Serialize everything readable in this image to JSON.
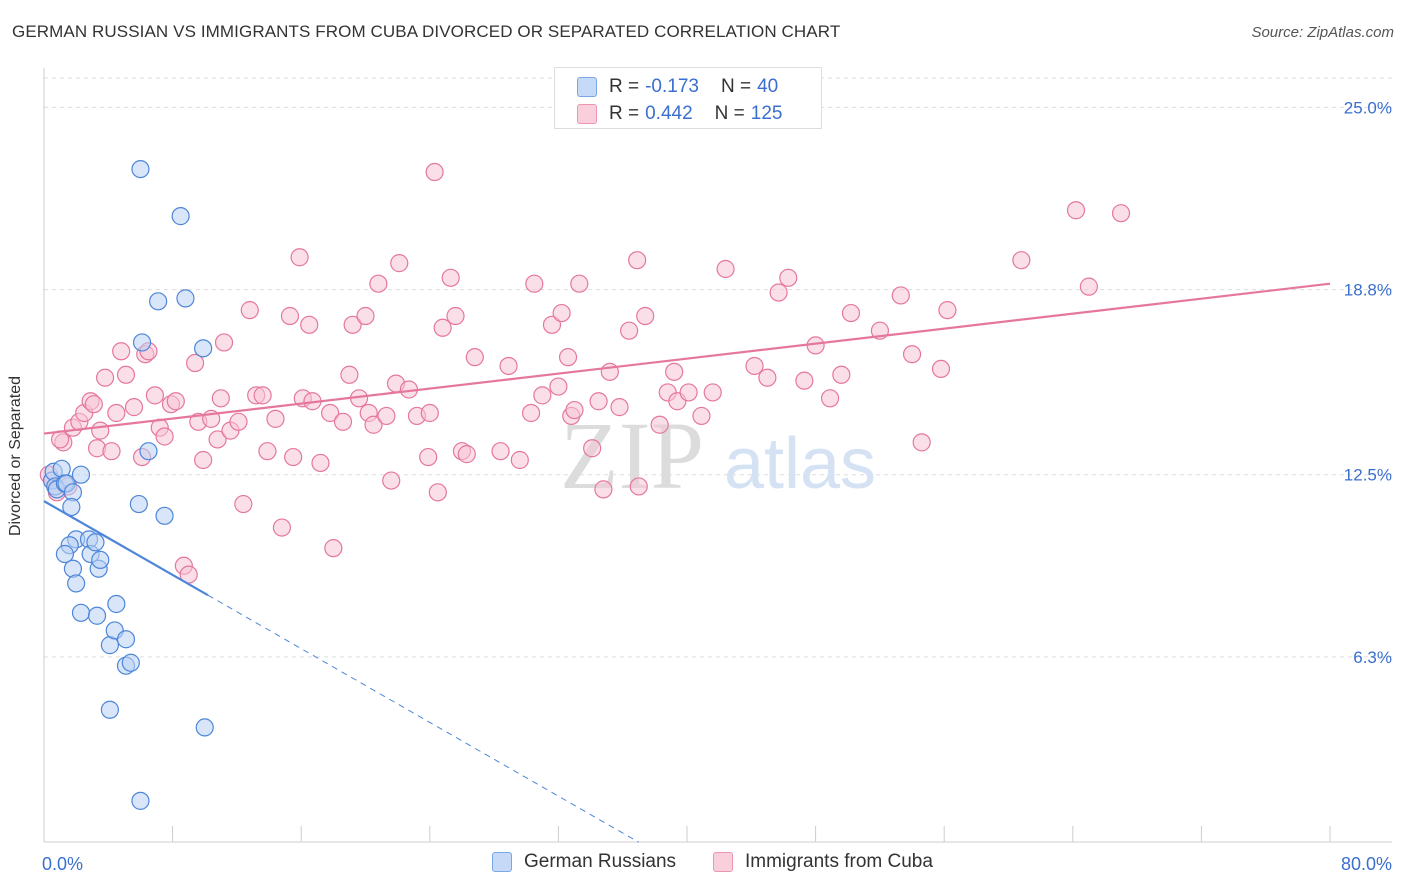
{
  "title": "GERMAN RUSSIAN VS IMMIGRANTS FROM CUBA DIVORCED OR SEPARATED CORRELATION CHART",
  "source": "Source: ZipAtlas.com",
  "watermark": {
    "zip": "ZIP",
    "atlas": "atlas"
  },
  "legend": {
    "r_label": "R =",
    "n_label": "N =",
    "rows": [
      {
        "r": "-0.173",
        "n": "40"
      },
      {
        "r": "0.442",
        "n": "125"
      }
    ]
  },
  "chart_data": {
    "type": "scatter",
    "title": "GERMAN RUSSIAN VS IMMIGRANTS FROM CUBA DIVORCED OR SEPARATED CORRELATION CHART",
    "xlabel": "",
    "ylabel": "Divorced or Separated",
    "x_range": [
      0,
      80
    ],
    "y_range": [
      0,
      26
    ],
    "x_ticks": [
      0,
      8,
      16,
      24,
      32,
      40,
      48,
      56,
      64,
      72,
      80
    ],
    "x_tick_labels": [
      {
        "value": 0,
        "label": "0.0%"
      },
      {
        "value": 80,
        "label": "80.0%"
      }
    ],
    "y_ticks": [
      {
        "value": 6.3,
        "label": "6.3%"
      },
      {
        "value": 12.5,
        "label": "12.5%"
      },
      {
        "value": 18.8,
        "label": "18.8%"
      },
      {
        "value": 25.0,
        "label": "25.0%"
      }
    ],
    "grid": true,
    "colors": {
      "blue": "#4d86d9",
      "blue_fill": "#b9d1f4",
      "pink": "#e5779e",
      "pink_fill": "#f7c5d5",
      "tick_label": "#3a6fd0",
      "grid": "#dddddd"
    },
    "series": [
      {
        "name": "German Russians",
        "r": -0.173,
        "n": 40,
        "trend": {
          "x0": 0,
          "y0": 11.6,
          "x1": 10.2,
          "y1": 8.4,
          "dash_to_x": 37
        },
        "points": [
          [
            0.5,
            12.3
          ],
          [
            0.6,
            12.6
          ],
          [
            0.7,
            12.1
          ],
          [
            0.8,
            12.0
          ],
          [
            1.1,
            12.7
          ],
          [
            1.3,
            12.2
          ],
          [
            1.4,
            12.2
          ],
          [
            1.8,
            11.9
          ],
          [
            1.7,
            11.4
          ],
          [
            2.0,
            10.3
          ],
          [
            1.6,
            10.1
          ],
          [
            1.3,
            9.8
          ],
          [
            1.8,
            9.3
          ],
          [
            2.3,
            12.5
          ],
          [
            2.0,
            8.8
          ],
          [
            2.3,
            7.8
          ],
          [
            2.8,
            10.3
          ],
          [
            2.9,
            9.8
          ],
          [
            3.2,
            10.2
          ],
          [
            3.4,
            9.3
          ],
          [
            3.3,
            7.7
          ],
          [
            3.5,
            9.6
          ],
          [
            4.1,
            6.7
          ],
          [
            4.4,
            7.2
          ],
          [
            4.5,
            8.1
          ],
          [
            5.1,
            6.9
          ],
          [
            5.1,
            6.0
          ],
          [
            5.4,
            6.1
          ],
          [
            4.1,
            4.5
          ],
          [
            6.0,
            1.4
          ],
          [
            5.9,
            11.5
          ],
          [
            6.5,
            13.3
          ],
          [
            7.5,
            11.1
          ],
          [
            6.1,
            17.0
          ],
          [
            7.1,
            18.4
          ],
          [
            8.8,
            18.5
          ],
          [
            9.9,
            16.8
          ],
          [
            10.0,
            3.9
          ],
          [
            6.0,
            22.9
          ],
          [
            8.5,
            21.3
          ]
        ]
      },
      {
        "name": "Immigrants from Cuba",
        "r": 0.442,
        "n": 125,
        "trend": {
          "x0": 0,
          "y0": 13.9,
          "x1": 80,
          "y1": 19.0
        },
        "points": [
          [
            0.3,
            12.5
          ],
          [
            0.5,
            12.3
          ],
          [
            0.8,
            11.9
          ],
          [
            1.2,
            13.6
          ],
          [
            1.5,
            12.1
          ],
          [
            1.0,
            13.7
          ],
          [
            1.8,
            14.1
          ],
          [
            2.2,
            14.3
          ],
          [
            2.5,
            14.6
          ],
          [
            2.9,
            15.0
          ],
          [
            3.1,
            14.9
          ],
          [
            3.3,
            13.4
          ],
          [
            3.5,
            14.0
          ],
          [
            3.8,
            15.8
          ],
          [
            4.2,
            13.3
          ],
          [
            4.5,
            14.6
          ],
          [
            4.8,
            16.7
          ],
          [
            5.1,
            15.9
          ],
          [
            5.6,
            14.8
          ],
          [
            6.1,
            13.1
          ],
          [
            6.3,
            16.6
          ],
          [
            6.5,
            16.7
          ],
          [
            6.9,
            15.2
          ],
          [
            7.2,
            14.1
          ],
          [
            7.5,
            13.8
          ],
          [
            7.9,
            14.9
          ],
          [
            8.2,
            15.0
          ],
          [
            8.7,
            9.4
          ],
          [
            9.0,
            9.1
          ],
          [
            9.4,
            16.3
          ],
          [
            9.6,
            14.3
          ],
          [
            9.9,
            13.0
          ],
          [
            10.4,
            14.4
          ],
          [
            10.8,
            13.7
          ],
          [
            11.0,
            15.1
          ],
          [
            11.2,
            17.0
          ],
          [
            11.6,
            14.0
          ],
          [
            12.1,
            14.3
          ],
          [
            12.4,
            11.5
          ],
          [
            12.8,
            18.1
          ],
          [
            13.2,
            15.2
          ],
          [
            13.6,
            15.2
          ],
          [
            13.9,
            13.3
          ],
          [
            14.4,
            14.4
          ],
          [
            14.8,
            10.7
          ],
          [
            15.3,
            17.9
          ],
          [
            15.5,
            13.1
          ],
          [
            15.9,
            19.9
          ],
          [
            16.1,
            15.1
          ],
          [
            16.5,
            17.6
          ],
          [
            16.7,
            15.0
          ],
          [
            17.2,
            12.9
          ],
          [
            17.8,
            14.6
          ],
          [
            18.0,
            10.0
          ],
          [
            18.6,
            14.3
          ],
          [
            19.0,
            15.9
          ],
          [
            19.2,
            17.6
          ],
          [
            19.6,
            15.1
          ],
          [
            20.0,
            17.9
          ],
          [
            20.2,
            14.6
          ],
          [
            20.5,
            14.2
          ],
          [
            20.8,
            19.0
          ],
          [
            21.3,
            14.5
          ],
          [
            21.6,
            12.3
          ],
          [
            21.9,
            15.6
          ],
          [
            22.1,
            19.7
          ],
          [
            22.7,
            15.4
          ],
          [
            23.2,
            14.5
          ],
          [
            23.9,
            13.1
          ],
          [
            24.0,
            14.6
          ],
          [
            24.5,
            11.9
          ],
          [
            24.8,
            17.5
          ],
          [
            25.3,
            19.2
          ],
          [
            25.6,
            17.9
          ],
          [
            26.0,
            13.3
          ],
          [
            26.3,
            13.2
          ],
          [
            26.8,
            16.5
          ],
          [
            28.4,
            13.3
          ],
          [
            28.9,
            16.2
          ],
          [
            29.6,
            13.0
          ],
          [
            30.3,
            14.6
          ],
          [
            30.5,
            19.0
          ],
          [
            31.0,
            15.2
          ],
          [
            31.6,
            17.6
          ],
          [
            32.0,
            15.5
          ],
          [
            32.2,
            18.0
          ],
          [
            32.6,
            16.5
          ],
          [
            32.8,
            14.5
          ],
          [
            33.0,
            14.7
          ],
          [
            33.3,
            19.0
          ],
          [
            34.1,
            13.4
          ],
          [
            34.5,
            15.0
          ],
          [
            34.8,
            12.0
          ],
          [
            35.2,
            16.0
          ],
          [
            35.8,
            14.8
          ],
          [
            36.4,
            17.4
          ],
          [
            36.9,
            19.8
          ],
          [
            37.0,
            12.1
          ],
          [
            37.4,
            17.9
          ],
          [
            38.3,
            14.2
          ],
          [
            38.8,
            15.3
          ],
          [
            39.2,
            16.0
          ],
          [
            39.4,
            15.0
          ],
          [
            40.1,
            15.3
          ],
          [
            40.9,
            14.5
          ],
          [
            41.6,
            15.3
          ],
          [
            42.4,
            19.5
          ],
          [
            44.2,
            16.2
          ],
          [
            45.0,
            15.8
          ],
          [
            45.7,
            18.7
          ],
          [
            46.3,
            19.2
          ],
          [
            47.3,
            15.7
          ],
          [
            48.0,
            16.9
          ],
          [
            48.9,
            15.1
          ],
          [
            49.6,
            15.9
          ],
          [
            50.2,
            18.0
          ],
          [
            52.0,
            17.4
          ],
          [
            53.3,
            18.6
          ],
          [
            54.0,
            16.6
          ],
          [
            54.6,
            13.6
          ],
          [
            55.8,
            16.1
          ],
          [
            56.2,
            18.1
          ],
          [
            60.8,
            19.8
          ],
          [
            64.2,
            21.5
          ],
          [
            65.0,
            18.9
          ],
          [
            67.0,
            21.4
          ],
          [
            24.3,
            22.8
          ]
        ]
      }
    ]
  }
}
